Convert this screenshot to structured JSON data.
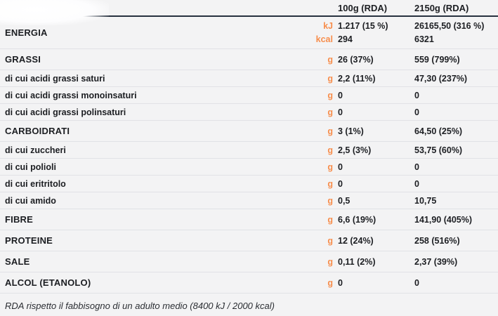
{
  "theme": {
    "background": "#f3f3f4",
    "accent_orange": "#f78e4d",
    "header_rule": "#27313f",
    "separator": "#e1e2e6",
    "text": "#1c1e22"
  },
  "header": {
    "col_100g": "100g (RDA)",
    "col_2150g": "2150g (RDA)"
  },
  "energy": {
    "label": "ENERGIA",
    "lines": [
      {
        "unit": "kJ",
        "v1": "1.217 (15 %)",
        "v2": "26165,50 (316 %)"
      },
      {
        "unit": "kcal",
        "v1": "294",
        "v2": "6321"
      }
    ]
  },
  "rows": [
    {
      "label": "GRASSI",
      "unit": "g",
      "v1": "26 (37%)",
      "v2": "559 (799%)",
      "category": true
    },
    {
      "label": "di cui acidi grassi saturi",
      "unit": "g",
      "v1": "2,2 (11%)",
      "v2": "47,30 (237%)",
      "category": false
    },
    {
      "label": "di cui acidi grassi monoinsaturi",
      "unit": "g",
      "v1": "0",
      "v2": "0",
      "category": false
    },
    {
      "label": "di cui acidi grassi polinsaturi",
      "unit": "g",
      "v1": "0",
      "v2": "0",
      "category": false
    },
    {
      "label": "CARBOIDRATI",
      "unit": "g",
      "v1": "3 (1%)",
      "v2": "64,50 (25%)",
      "category": true
    },
    {
      "label": "di cui zuccheri",
      "unit": "g",
      "v1": "2,5 (3%)",
      "v2": "53,75 (60%)",
      "category": false
    },
    {
      "label": "di cui polioli",
      "unit": "g",
      "v1": "0",
      "v2": "0",
      "category": false
    },
    {
      "label": "di cui eritritolo",
      "unit": "g",
      "v1": "0",
      "v2": "0",
      "category": false
    },
    {
      "label": "di cui amido",
      "unit": "g",
      "v1": "0,5",
      "v2": "10,75",
      "category": false
    },
    {
      "label": "FIBRE",
      "unit": "g",
      "v1": "6,6 (19%)",
      "v2": "141,90 (405%)",
      "category": true
    },
    {
      "label": "PROTEINE",
      "unit": "g",
      "v1": "12 (24%)",
      "v2": "258 (516%)",
      "category": true
    },
    {
      "label": "SALE",
      "unit": "g",
      "v1": "0,11 (2%)",
      "v2": "2,37 (39%)",
      "category": true
    },
    {
      "label": "ALCOL (ETANOLO)",
      "unit": "g",
      "v1": "0",
      "v2": "0",
      "category": true
    }
  ],
  "footer": {
    "note": "RDA rispetto il fabbisogno di un adulto medio (8400 kJ / 2000 kcal)"
  }
}
